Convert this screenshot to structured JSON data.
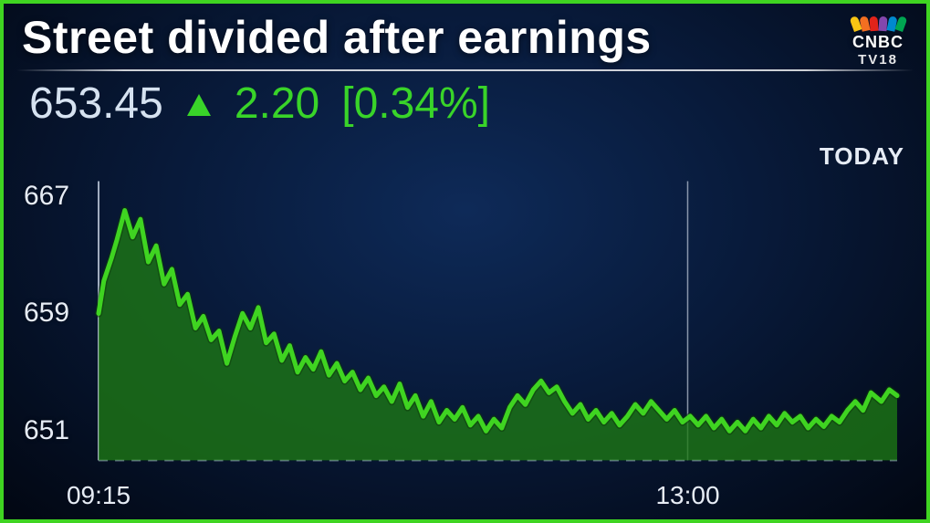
{
  "headline": "Street divided after earnings",
  "logo": {
    "text1": "CNBC",
    "text2": "TV18",
    "peacock_colors": [
      "#f8c513",
      "#f36f21",
      "#e2231a",
      "#8347ad",
      "#0089cf",
      "#00a651"
    ]
  },
  "quote": {
    "price": "653.45",
    "change": "2.20",
    "pct": "[0.34%]",
    "up_color": "#39d429",
    "text_color": "#d6e2f0"
  },
  "timeframe_label": "TODAY",
  "chart": {
    "type": "area",
    "ylim": [
      649,
      668
    ],
    "yticks": [
      667,
      659,
      651
    ],
    "xlim_minutes": [
      555,
      860
    ],
    "xticks": [
      {
        "minute": 555,
        "label": "09:15"
      },
      {
        "minute": 780,
        "label": "13:00"
      }
    ],
    "cursor_minute": 780,
    "line_color": "#3fd421",
    "line_width": 5,
    "fill_color": "#1e7a14",
    "fill_opacity": 0.78,
    "baseline_color": "#9fb1c8",
    "axis_color": "#c9d4e4",
    "label_fontsize": 30,
    "series": [
      [
        555,
        659.0
      ],
      [
        557,
        661.2
      ],
      [
        560,
        662.8
      ],
      [
        562,
        664.0
      ],
      [
        565,
        666.0
      ],
      [
        568,
        664.2
      ],
      [
        571,
        665.4
      ],
      [
        574,
        662.5
      ],
      [
        577,
        663.6
      ],
      [
        580,
        661.0
      ],
      [
        583,
        662.0
      ],
      [
        586,
        659.6
      ],
      [
        589,
        660.3
      ],
      [
        592,
        658.0
      ],
      [
        595,
        658.8
      ],
      [
        598,
        657.2
      ],
      [
        601,
        657.8
      ],
      [
        604,
        655.6
      ],
      [
        607,
        657.4
      ],
      [
        610,
        659.0
      ],
      [
        613,
        658.0
      ],
      [
        616,
        659.4
      ],
      [
        619,
        657.0
      ],
      [
        622,
        657.6
      ],
      [
        625,
        655.8
      ],
      [
        628,
        656.8
      ],
      [
        631,
        655.0
      ],
      [
        634,
        656.0
      ],
      [
        637,
        655.2
      ],
      [
        640,
        656.4
      ],
      [
        643,
        654.8
      ],
      [
        646,
        655.6
      ],
      [
        649,
        654.4
      ],
      [
        652,
        655.0
      ],
      [
        655,
        653.8
      ],
      [
        658,
        654.6
      ],
      [
        661,
        653.4
      ],
      [
        664,
        654.0
      ],
      [
        667,
        653.0
      ],
      [
        670,
        654.2
      ],
      [
        673,
        652.6
      ],
      [
        676,
        653.4
      ],
      [
        679,
        652.0
      ],
      [
        682,
        653.0
      ],
      [
        685,
        651.6
      ],
      [
        688,
        652.4
      ],
      [
        691,
        651.8
      ],
      [
        694,
        652.6
      ],
      [
        697,
        651.4
      ],
      [
        700,
        652.0
      ],
      [
        703,
        651.0
      ],
      [
        706,
        651.8
      ],
      [
        709,
        651.2
      ],
      [
        712,
        652.6
      ],
      [
        715,
        653.4
      ],
      [
        718,
        652.8
      ],
      [
        721,
        653.8
      ],
      [
        724,
        654.4
      ],
      [
        727,
        653.6
      ],
      [
        730,
        654.0
      ],
      [
        733,
        653.0
      ],
      [
        736,
        652.2
      ],
      [
        739,
        652.8
      ],
      [
        742,
        651.8
      ],
      [
        745,
        652.4
      ],
      [
        748,
        651.6
      ],
      [
        751,
        652.2
      ],
      [
        754,
        651.4
      ],
      [
        757,
        652.0
      ],
      [
        760,
        652.8
      ],
      [
        763,
        652.2
      ],
      [
        766,
        653.0
      ],
      [
        769,
        652.4
      ],
      [
        772,
        651.8
      ],
      [
        775,
        652.4
      ],
      [
        778,
        651.6
      ],
      [
        781,
        652.0
      ],
      [
        784,
        651.4
      ],
      [
        787,
        652.0
      ],
      [
        790,
        651.2
      ],
      [
        793,
        651.8
      ],
      [
        796,
        651.0
      ],
      [
        799,
        651.6
      ],
      [
        802,
        651.0
      ],
      [
        805,
        651.8
      ],
      [
        808,
        651.2
      ],
      [
        811,
        652.0
      ],
      [
        814,
        651.4
      ],
      [
        817,
        652.2
      ],
      [
        820,
        651.6
      ],
      [
        823,
        652.0
      ],
      [
        826,
        651.2
      ],
      [
        829,
        651.8
      ],
      [
        832,
        651.3
      ],
      [
        835,
        652.0
      ],
      [
        838,
        651.6
      ],
      [
        841,
        652.4
      ],
      [
        844,
        653.0
      ],
      [
        847,
        652.4
      ],
      [
        850,
        653.6
      ],
      [
        854,
        653.0
      ],
      [
        857,
        653.8
      ],
      [
        860,
        653.4
      ]
    ]
  },
  "colors": {
    "frame_border": "#3fd421",
    "bg_center": "#0e2a58",
    "bg_edge": "#020712",
    "text": "#e6ecf5"
  }
}
